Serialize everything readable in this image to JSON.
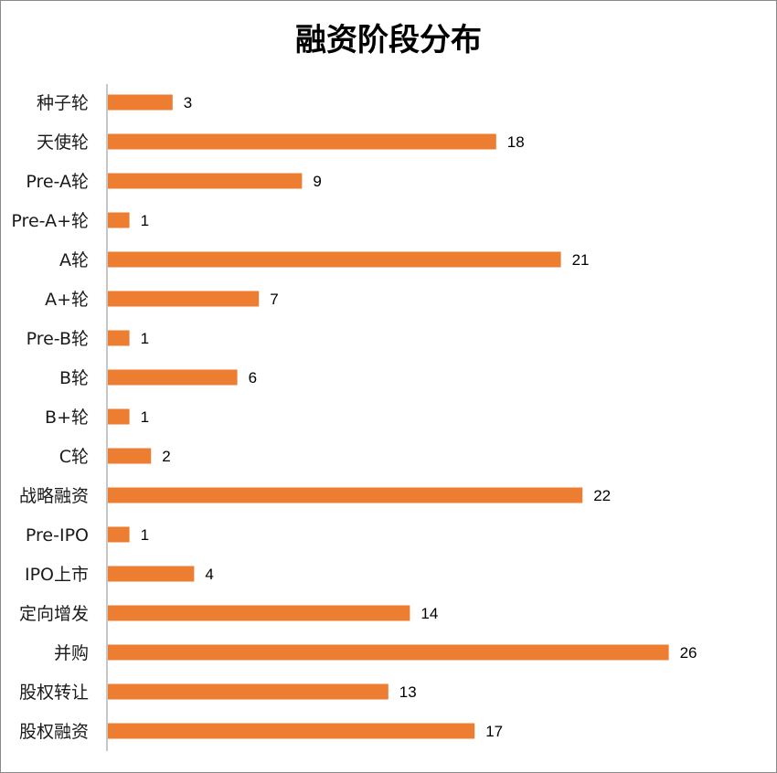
{
  "chart_data": {
    "type": "bar",
    "orientation": "horizontal",
    "title": "融资阶段分布",
    "categories": [
      "种子轮",
      "天使轮",
      "Pre-A轮",
      "Pre-A+轮",
      "A轮",
      "A+轮",
      "Pre-B轮",
      "B轮",
      "B+轮",
      "C轮",
      "战略融资",
      "Pre-IPO",
      "IPO上市",
      "定向增发",
      "并购",
      "股权转让",
      "股权融资"
    ],
    "values": [
      3,
      18,
      9,
      1,
      21,
      7,
      1,
      6,
      1,
      2,
      22,
      1,
      4,
      14,
      26,
      13,
      17
    ],
    "color": "#ed7d31",
    "grid": false,
    "legend": "none",
    "data_labels": true
  }
}
